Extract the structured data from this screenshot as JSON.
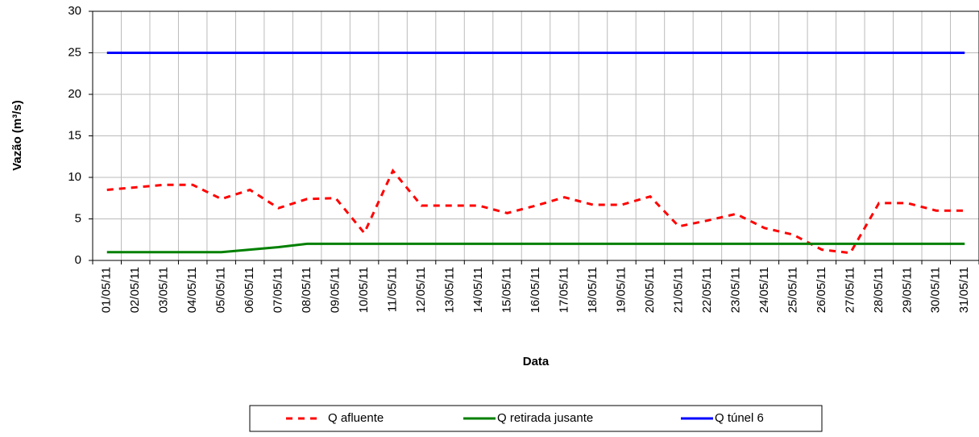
{
  "chart_data": {
    "type": "line",
    "y_label": "Vazão (m³/s)",
    "x_label": "Data",
    "categories": [
      "01/05/11",
      "02/05/11",
      "03/05/11",
      "04/05/11",
      "05/05/11",
      "06/05/11",
      "07/05/11",
      "08/05/11",
      "09/05/11",
      "10/05/11",
      "11/05/11",
      "12/05/11",
      "13/05/11",
      "14/05/11",
      "15/05/11",
      "16/05/11",
      "17/05/11",
      "18/05/11",
      "19/05/11",
      "20/05/11",
      "21/05/11",
      "22/05/11",
      "23/05/11",
      "24/05/11",
      "25/05/11",
      "26/05/11",
      "27/05/11",
      "28/05/11",
      "29/05/11",
      "30/05/11",
      "31/05/11"
    ],
    "series": [
      {
        "name": "Q afluente",
        "color": "#ff0000",
        "dashed": true,
        "values": [
          8.5,
          8.8,
          9.1,
          9.1,
          7.4,
          8.5,
          6.3,
          7.4,
          7.5,
          3.3,
          10.8,
          6.6,
          6.6,
          6.6,
          5.7,
          6.6,
          7.6,
          6.7,
          6.7,
          7.7,
          4.1,
          4.8,
          5.6,
          3.9,
          3.1,
          1.3,
          0.9,
          6.9,
          6.9,
          6.0,
          6.0
        ]
      },
      {
        "name": "Q retirada jusante",
        "color": "#008000",
        "dashed": false,
        "values": [
          1,
          1,
          1,
          1,
          1,
          1.3,
          1.6,
          2,
          2,
          2,
          2,
          2,
          2,
          2,
          2,
          2,
          2,
          2,
          2,
          2,
          2,
          2,
          2,
          2,
          2,
          2,
          2,
          2,
          2,
          2,
          2
        ]
      },
      {
        "name": "Q túnel 6",
        "color": "#0000ff",
        "dashed": false,
        "values": [
          25,
          25,
          25,
          25,
          25,
          25,
          25,
          25,
          25,
          25,
          25,
          25,
          25,
          25,
          25,
          25,
          25,
          25,
          25,
          25,
          25,
          25,
          25,
          25,
          25,
          25,
          25,
          25,
          25,
          25,
          25
        ]
      }
    ],
    "ylim": [
      0,
      30
    ],
    "yticks": [
      0,
      5,
      10,
      15,
      20,
      25,
      30
    ],
    "grid": true,
    "legend_position": "bottom"
  }
}
